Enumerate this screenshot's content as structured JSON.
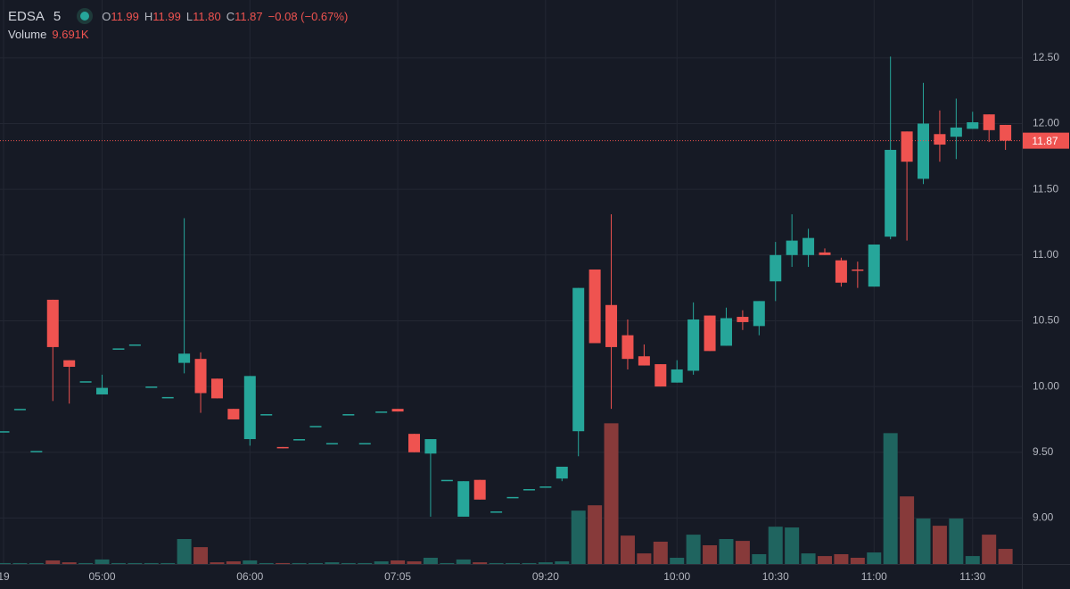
{
  "chart_data": {
    "type": "candlestick",
    "header": {
      "symbol": "EDSA",
      "interval": "5",
      "ohlc": [
        {
          "label": "O",
          "text": "11.99"
        },
        {
          "label": "H",
          "text": "11.99"
        },
        {
          "label": "L",
          "text": "11.80"
        },
        {
          "label": "C",
          "text": "11.87"
        }
      ],
      "change_text": "−0.08 (−0.67%)",
      "volume_label": "Volume",
      "volume_text": "9.691K"
    },
    "categories": [
      "19",
      null,
      null,
      null,
      null,
      null,
      "05:00",
      null,
      null,
      null,
      null,
      null,
      null,
      null,
      null,
      "06:00",
      null,
      null,
      null,
      null,
      null,
      null,
      null,
      null,
      "07:05",
      null,
      null,
      null,
      null,
      null,
      null,
      null,
      null,
      "09:20",
      null,
      null,
      null,
      null,
      null,
      null,
      null,
      "10:00",
      null,
      null,
      null,
      null,
      null,
      "10:30",
      null,
      null,
      null,
      null,
      null,
      "11:00",
      null,
      null,
      null,
      null,
      null,
      "11:30",
      null,
      null
    ],
    "open": [
      9.66,
      9.83,
      9.51,
      10.66,
      10.2,
      10.04,
      9.94,
      10.29,
      10.32,
      10.0,
      9.92,
      10.18,
      10.21,
      10.06,
      9.83,
      9.6,
      9.79,
      9.54,
      9.6,
      9.7,
      9.57,
      9.79,
      9.57,
      9.81,
      9.83,
      9.64,
      9.49,
      9.29,
      9.01,
      9.29,
      9.05,
      9.16,
      9.22,
      9.24,
      9.3,
      9.66,
      10.89,
      10.62,
      10.39,
      10.23,
      10.17,
      10.03,
      10.12,
      10.54,
      10.31,
      10.53,
      10.46,
      10.8,
      11.0,
      11.0,
      11.02,
      10.96,
      10.89,
      10.76,
      11.14,
      11.94,
      11.58,
      11.92,
      11.9,
      11.96,
      12.07,
      11.99
    ],
    "high": [
      9.66,
      9.83,
      9.51,
      10.66,
      10.2,
      10.04,
      10.09,
      10.29,
      10.32,
      10.0,
      9.92,
      11.28,
      10.26,
      10.06,
      9.83,
      10.08,
      9.79,
      9.54,
      9.6,
      9.7,
      9.57,
      9.79,
      9.57,
      9.81,
      9.83,
      9.64,
      9.6,
      9.29,
      9.28,
      9.29,
      9.05,
      9.16,
      9.22,
      9.24,
      9.39,
      10.75,
      10.89,
      11.31,
      10.51,
      10.32,
      10.17,
      10.2,
      10.64,
      10.54,
      10.6,
      10.58,
      10.65,
      11.1,
      11.31,
      11.2,
      11.05,
      10.98,
      10.95,
      11.08,
      12.51,
      11.94,
      12.31,
      12.1,
      12.19,
      12.09,
      12.07,
      11.99
    ],
    "low": [
      9.66,
      9.83,
      9.51,
      9.89,
      9.87,
      10.04,
      9.94,
      10.29,
      10.32,
      10.0,
      9.92,
      10.1,
      9.8,
      9.91,
      9.75,
      9.55,
      9.79,
      9.53,
      9.6,
      9.7,
      9.57,
      9.79,
      9.57,
      9.81,
      9.81,
      9.5,
      9.01,
      9.29,
      9.01,
      9.14,
      9.05,
      9.16,
      9.22,
      9.24,
      9.28,
      9.47,
      10.33,
      9.83,
      10.13,
      10.16,
      10.0,
      10.03,
      10.09,
      10.27,
      10.31,
      10.43,
      10.39,
      10.65,
      10.91,
      10.91,
      11.0,
      10.76,
      10.75,
      10.76,
      11.12,
      11.11,
      11.54,
      11.71,
      11.73,
      11.96,
      11.86,
      11.8
    ],
    "close": [
      9.66,
      9.83,
      9.51,
      10.3,
      10.15,
      10.04,
      9.99,
      10.29,
      10.32,
      10.0,
      9.92,
      10.25,
      9.95,
      9.91,
      9.75,
      10.08,
      9.79,
      9.53,
      9.6,
      9.7,
      9.57,
      9.79,
      9.57,
      9.81,
      9.81,
      9.5,
      9.6,
      9.29,
      9.28,
      9.14,
      9.05,
      9.16,
      9.22,
      9.24,
      9.39,
      10.75,
      10.33,
      10.3,
      10.21,
      10.16,
      10.0,
      10.13,
      10.51,
      10.27,
      10.52,
      10.49,
      10.65,
      11.0,
      11.11,
      11.13,
      11.0,
      10.79,
      10.88,
      11.08,
      11.8,
      11.71,
      12.0,
      11.84,
      11.97,
      12.01,
      11.95,
      11.87
    ],
    "volume": [
      0.6,
      0.6,
      0.6,
      2.3,
      1.1,
      0.6,
      2.9,
      0.6,
      0.6,
      0.6,
      0.6,
      16.0,
      10.8,
      1.1,
      1.7,
      2.3,
      0.6,
      0.6,
      0.6,
      0.6,
      1.1,
      0.6,
      0.6,
      1.7,
      2.3,
      1.7,
      4.0,
      0.6,
      2.9,
      1.1,
      0.6,
      0.6,
      0.6,
      1.1,
      1.7,
      34.2,
      37.6,
      90.1,
      18.2,
      6.8,
      14.3,
      4.0,
      18.8,
      12.0,
      16.0,
      14.8,
      6.3,
      23.9,
      23.4,
      6.8,
      5.1,
      6.3,
      4.0,
      7.4,
      83.8,
      43.3,
      29.1,
      24.5,
      29.1,
      5.1,
      18.8,
      9.691
    ],
    "up_color": "#26a69a",
    "down_color": "#ef5350",
    "volume_up_color": "#1f645f",
    "volume_down_color": "#873a3a",
    "ylim": [
      8.65,
      12.94
    ],
    "yticks": [
      {
        "value": 9,
        "label": "9.00"
      },
      {
        "value": 9.5,
        "label": "9.50"
      },
      {
        "value": 10,
        "label": "10.00"
      },
      {
        "value": 10.5,
        "label": "10.50"
      },
      {
        "value": 11,
        "label": "11.00"
      },
      {
        "value": 11.5,
        "label": "11.50"
      },
      {
        "value": 12,
        "label": "12.00"
      },
      {
        "value": 12.5,
        "label": "12.50"
      }
    ],
    "vlim": [
      0,
      100
    ],
    "price_line": {
      "value": 11.87,
      "label": "11.87"
    },
    "grid": true
  }
}
